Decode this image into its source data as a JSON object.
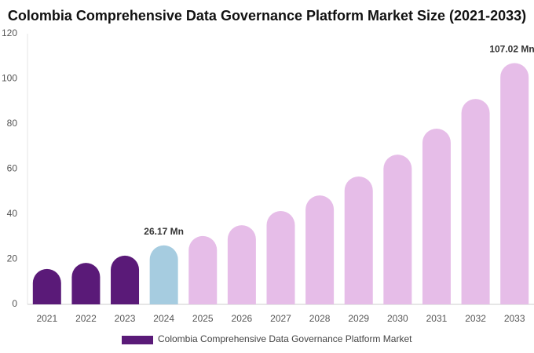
{
  "chart_data": {
    "type": "bar",
    "title": "Colombia Comprehensive Data Governance Platform Market Size (2021-2033)",
    "categories": [
      "2021",
      "2022",
      "2023",
      "2024",
      "2025",
      "2026",
      "2027",
      "2028",
      "2029",
      "2030",
      "2031",
      "2032",
      "2033"
    ],
    "series": [
      {
        "name": "Colombia Comprehensive Data Governance Platform Market",
        "color": "#5a1a78",
        "values": [
          15.7,
          18.4,
          21.6,
          26.17,
          30.3,
          35.1,
          41.4,
          48.3,
          56.7,
          66.4,
          77.9,
          91.1,
          107.02
        ],
        "value_labels": [
          null,
          null,
          null,
          "26.17 Mn",
          null,
          null,
          null,
          null,
          null,
          null,
          null,
          null,
          "107.02 Mn"
        ],
        "colors": [
          "#5a1a78",
          "#5a1a78",
          "#5a1a78",
          "#a6cce0",
          "#e6bde8",
          "#e6bde8",
          "#e6bde8",
          "#e6bde8",
          "#e6bde8",
          "#e6bde8",
          "#e6bde8",
          "#e6bde8",
          "#e6bde8"
        ]
      }
    ],
    "ylim": [
      0,
      120
    ],
    "yticks": [
      0,
      20,
      40,
      60,
      80,
      100,
      120
    ],
    "grid": false,
    "legend": "bottom"
  }
}
